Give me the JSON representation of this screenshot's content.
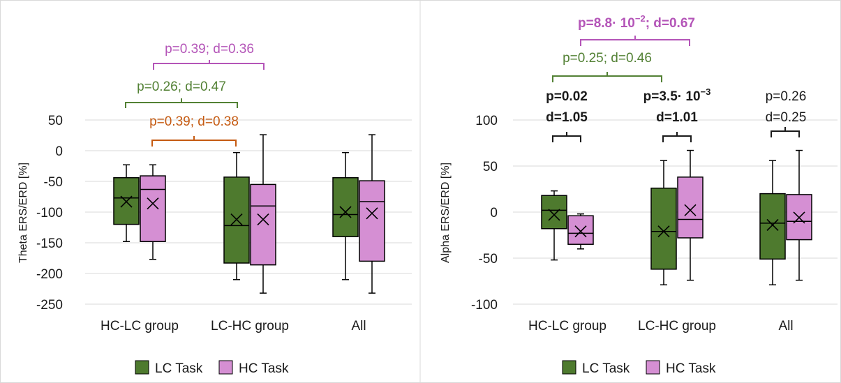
{
  "colors": {
    "lc_fill": "#4e7a2e",
    "hc_fill": "#d58fd3",
    "grid": "#d9d9d9",
    "ann_green": "#538135",
    "ann_purple": "#b455b8",
    "ann_brown": "#c55a11",
    "ann_black": "#1a1a1a"
  },
  "legend": {
    "lc_label": "LC Task",
    "hc_label": "HC Task"
  },
  "chart_data": [
    {
      "type": "box",
      "ylabel": "Theta ERS/ERD [%]",
      "ylim": [
        -250,
        50
      ],
      "yticks": [
        50,
        0,
        -50,
        -100,
        -150,
        -200,
        -250
      ],
      "grid": true,
      "legend_position": "bottom",
      "categories": [
        "HC-LC group",
        "LC-HC group",
        "All"
      ],
      "series": [
        {
          "name": "LC Task",
          "boxes": [
            {
              "min": -148,
              "q1": -120,
              "median": -77,
              "q3": -44,
              "max": -23,
              "mean": -83
            },
            {
              "min": -210,
              "q1": -183,
              "median": -122,
              "q3": -43,
              "max": -3,
              "mean": -112
            },
            {
              "min": -210,
              "q1": -140,
              "median": -104,
              "q3": -44,
              "max": -3,
              "mean": -100
            }
          ]
        },
        {
          "name": "HC Task",
          "boxes": [
            {
              "min": -177,
              "q1": -148,
              "median": -63,
              "q3": -41,
              "max": -23,
              "mean": -86
            },
            {
              "min": -232,
              "q1": -186,
              "median": -90,
              "q3": -55,
              "max": 26,
              "mean": -112
            },
            {
              "min": -232,
              "q1": -180,
              "median": -83,
              "q3": -49,
              "max": 26,
              "mean": -102
            }
          ]
        }
      ],
      "annotations": [
        {
          "text": "p=0.39; d=0.36",
          "color": "ann_purple",
          "bold": false
        },
        {
          "text": "p=0.26; d=0.47",
          "color": "ann_green",
          "bold": false
        },
        {
          "text": "p=0.39; d=0.38",
          "color": "ann_brown",
          "bold": false
        }
      ]
    },
    {
      "type": "box",
      "ylabel": "Alpha ERS/ERD  [%]",
      "ylim": [
        -100,
        100
      ],
      "yticks": [
        100,
        50,
        0,
        -50,
        -100
      ],
      "grid": true,
      "legend_position": "bottom",
      "categories": [
        "HC-LC group",
        "LC-HC group",
        "All"
      ],
      "series": [
        {
          "name": "LC Task",
          "boxes": [
            {
              "min": -52,
              "q1": -18,
              "median": 2,
              "q3": 18,
              "max": 23,
              "mean": -3
            },
            {
              "min": -79,
              "q1": -62,
              "median": -21,
              "q3": 26,
              "max": 56,
              "mean": -21
            },
            {
              "min": -79,
              "q1": -51,
              "median": -12,
              "q3": 20,
              "max": 56,
              "mean": -14
            }
          ]
        },
        {
          "name": "HC Task",
          "boxes": [
            {
              "min": -40,
              "q1": -35,
              "median": -23,
              "q3": -4,
              "max": -2,
              "mean": -21
            },
            {
              "min": -74,
              "q1": -28,
              "median": -8,
              "q3": 38,
              "max": 67,
              "mean": 2
            },
            {
              "min": -74,
              "q1": -30,
              "median": -10,
              "q3": 19,
              "max": 67,
              "mean": -6
            }
          ]
        }
      ],
      "annotations": [
        {
          "text": "p=8.8· 10",
          "sup": "−2",
          "tail": "; d=0.67",
          "color": "ann_purple",
          "bold": true
        },
        {
          "text": "p=0.25; d=0.46",
          "color": "ann_green",
          "bold": false
        },
        {
          "text": "p=0.02",
          "line2": "d=1.05",
          "color": "ann_black",
          "bold": true
        },
        {
          "text": "p=3.5· 10",
          "sup": "−3",
          "line2": "d=1.01",
          "color": "ann_black",
          "bold": true
        },
        {
          "text": "p=0.26",
          "line2": "d=0.25",
          "color": "ann_black",
          "bold": false
        }
      ]
    }
  ]
}
